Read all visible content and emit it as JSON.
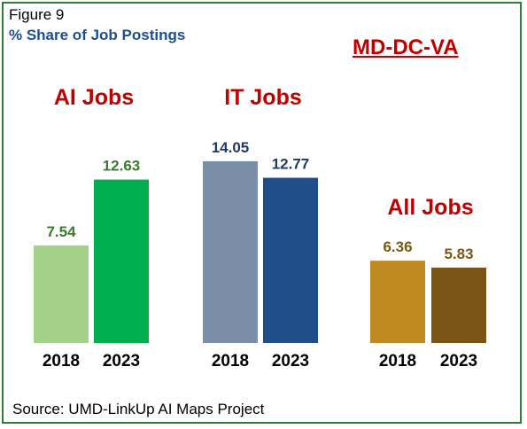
{
  "figure": {
    "label": "Figure 9",
    "subtitle": "% Share of Job Postings",
    "region": "MD-DC-VA",
    "source": "Source: UMD-LinkUp AI Maps Project"
  },
  "colors": {
    "border": "#2f7d3a",
    "title_red": "#c00000",
    "subtitle_blue": "#1f4e8c"
  },
  "chart_data": {
    "type": "bar",
    "title": "% Share of Job Postings",
    "xlabel": "",
    "ylabel": "",
    "ylim": [
      0,
      16
    ],
    "grid": false,
    "legend": "none",
    "groups": [
      {
        "name": "AI Jobs",
        "categories": [
          "2018",
          "2023"
        ],
        "values": [
          7.54,
          12.63
        ],
        "colors": [
          "#a3d18a",
          "#00ad4f"
        ],
        "label_color": "#3a7a2e"
      },
      {
        "name": "IT Jobs",
        "categories": [
          "2018",
          "2023"
        ],
        "values": [
          14.05,
          12.77
        ],
        "colors": [
          "#7b8ea8",
          "#214d8a"
        ],
        "label_color": "#1f3a5f"
      },
      {
        "name": "All Jobs",
        "categories": [
          "2018",
          "2023"
        ],
        "values": [
          6.36,
          5.83
        ],
        "colors": [
          "#c08a23",
          "#7a5515"
        ],
        "label_color": "#7a5a14"
      }
    ]
  }
}
